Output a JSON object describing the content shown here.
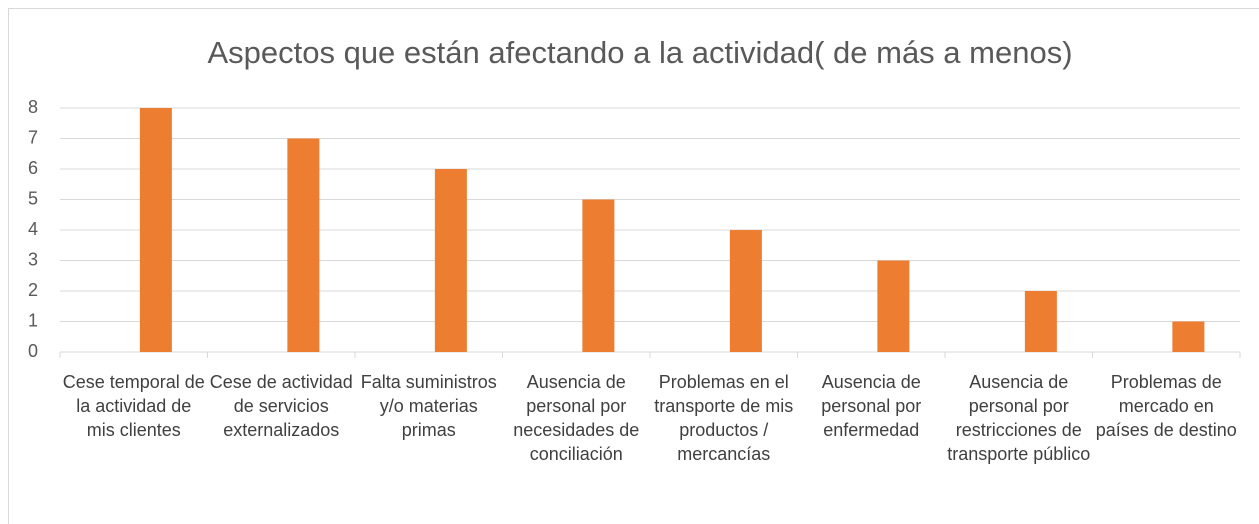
{
  "chart_data": {
    "type": "bar",
    "title": "Aspectos que están afectando a la actividad( de más a menos)",
    "categories": [
      "Cese temporal de la actividad de mis clientes",
      "Cese de actividad de servicios externalizados",
      "Falta suministros y/o materias primas",
      "Ausencia de personal por necesidades de conciliación",
      "Problemas en el transporte de mis productos / mercancías",
      "Ausencia de personal por enfermedad",
      "Ausencia de personal por restricciones de transporte público",
      "Problemas de mercado en países de destino"
    ],
    "values": [
      8,
      7,
      6,
      5,
      4,
      3,
      2,
      1
    ],
    "color": "#ed7d31",
    "ylim": [
      0,
      8
    ],
    "yticks": [
      0,
      1,
      2,
      3,
      4,
      5,
      6,
      7,
      8
    ],
    "grid": true
  }
}
